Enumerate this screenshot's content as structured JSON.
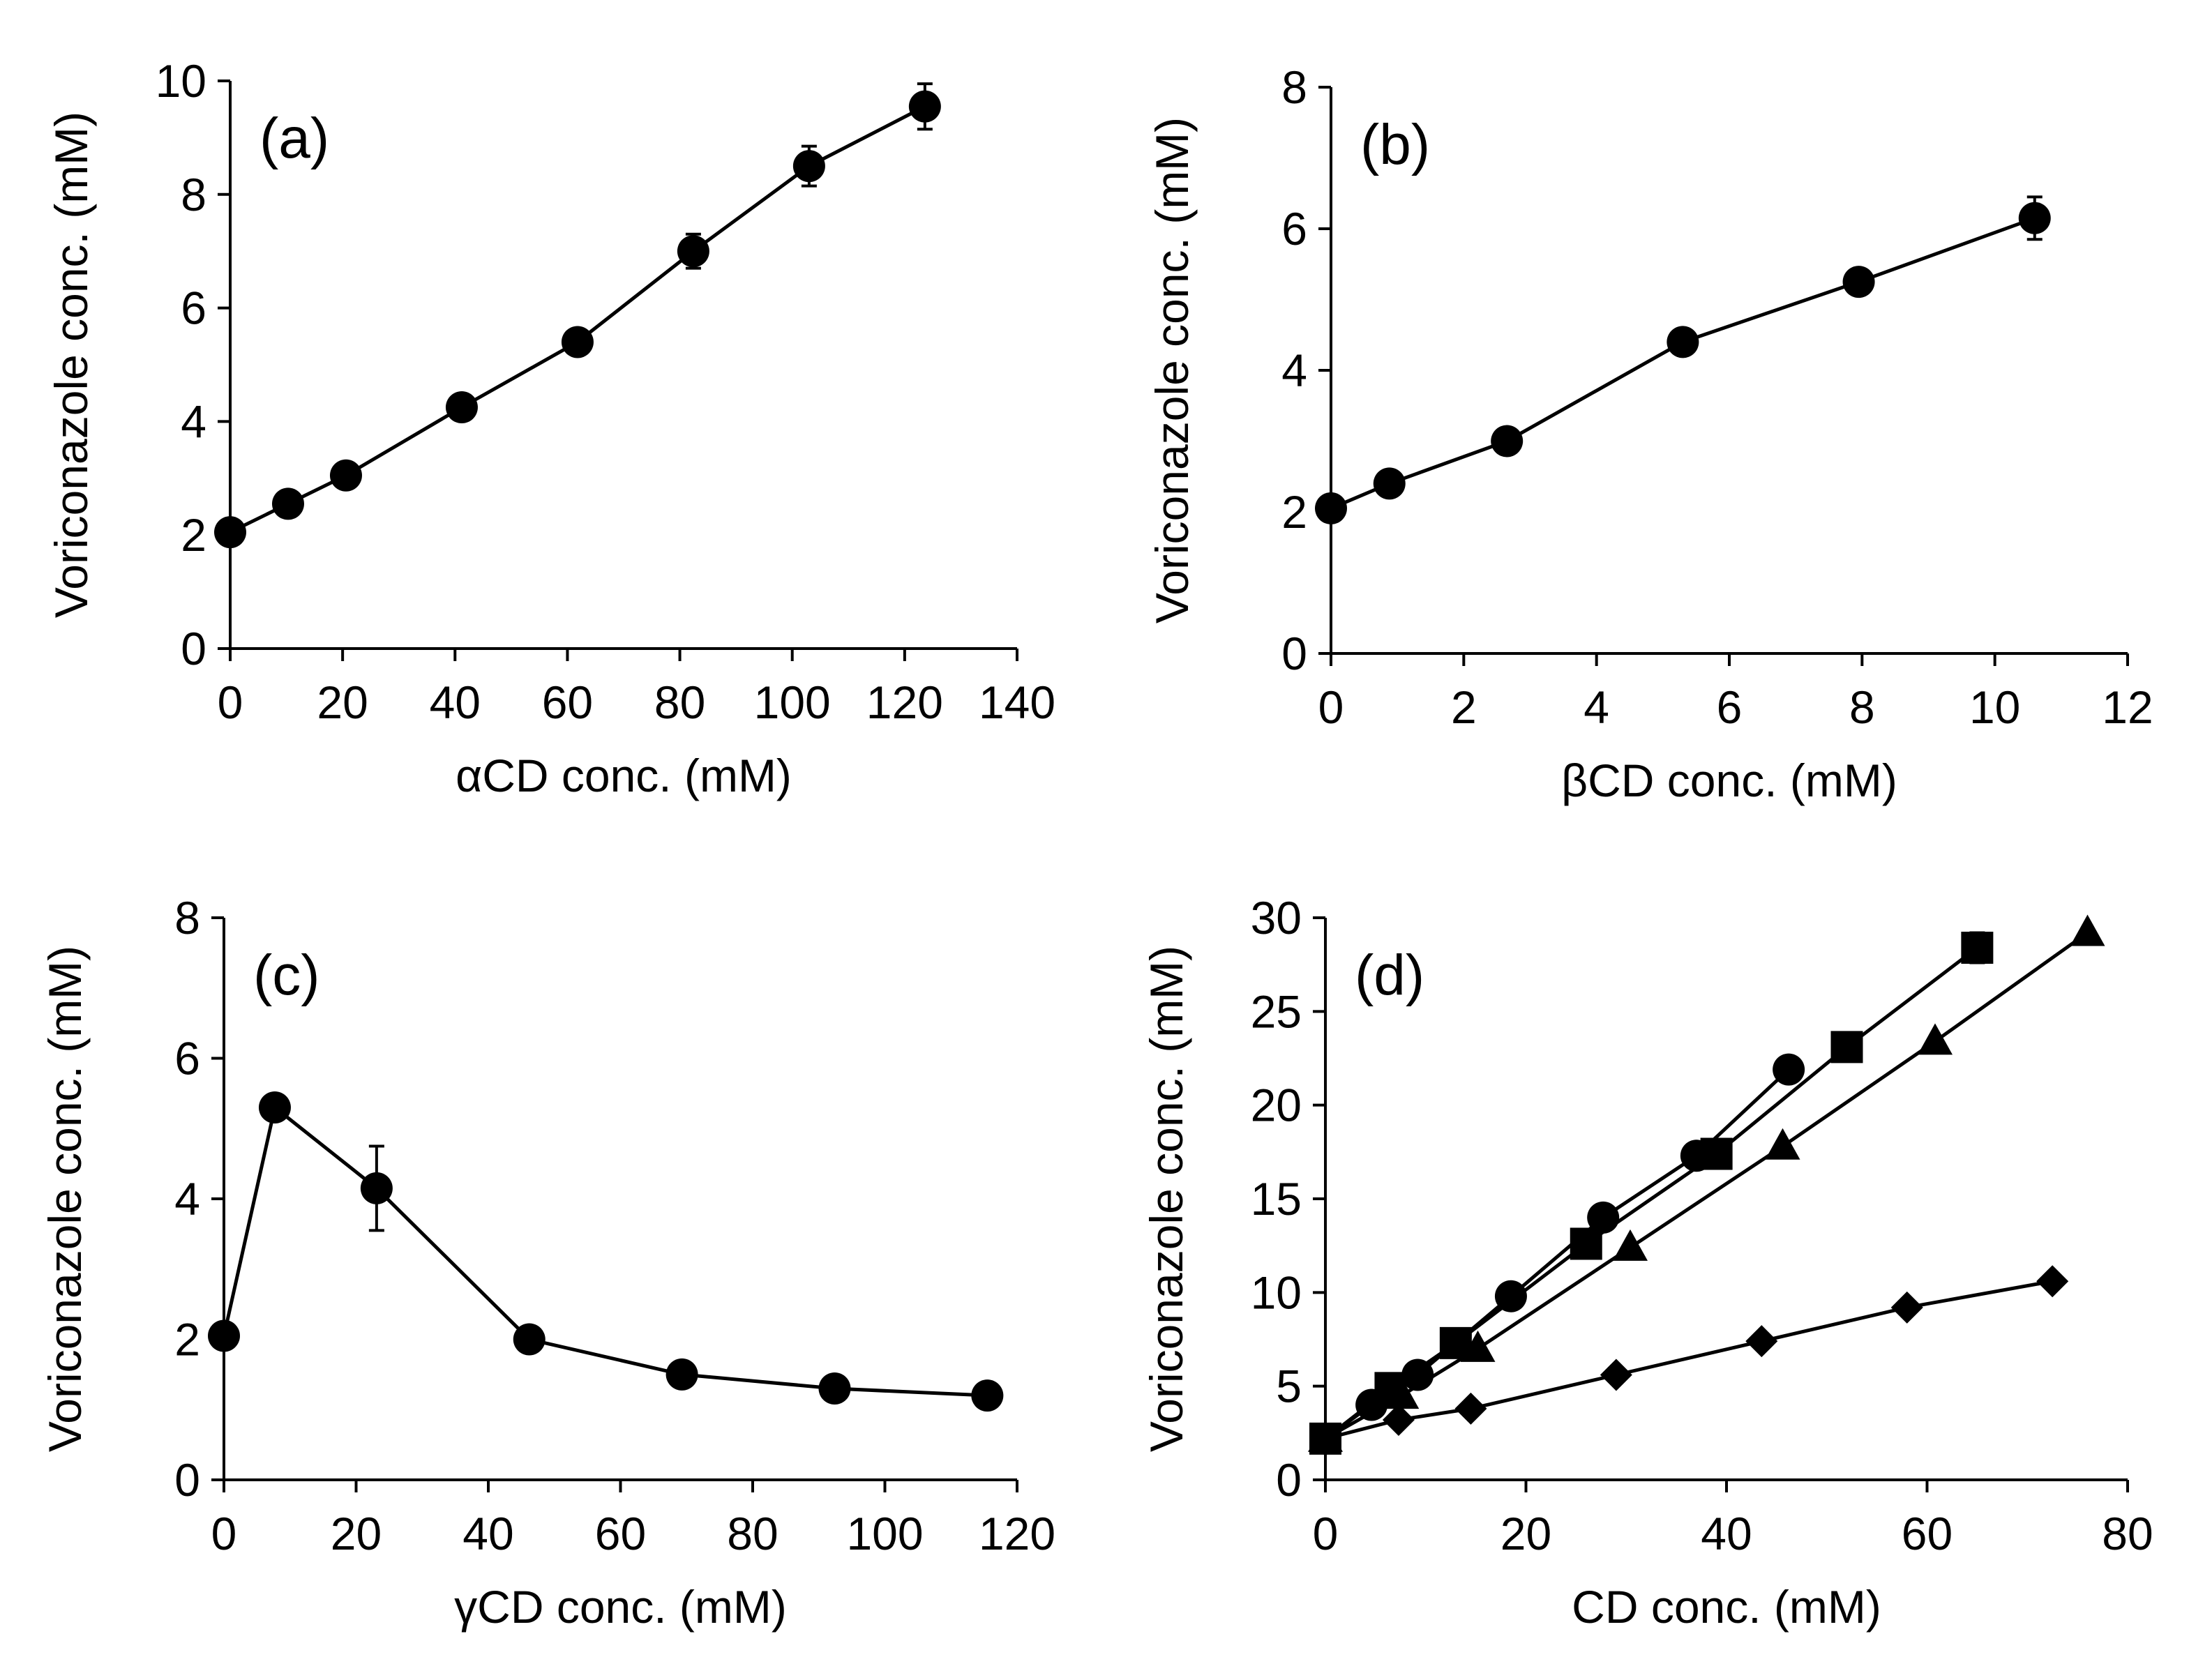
{
  "chart_data": [
    {
      "panel": "(a)",
      "type": "line",
      "xlabel": "αCD conc. (mM)",
      "ylabel": "Voriconazole conc. (mM)",
      "xlim": [
        0,
        140
      ],
      "ylim": [
        0,
        10
      ],
      "xticks": [
        0,
        20,
        40,
        60,
        80,
        100,
        120,
        140
      ],
      "yticks": [
        0,
        2,
        4,
        6,
        8,
        10
      ],
      "grid": false,
      "series": [
        {
          "name": "αCD",
          "marker": "circle",
          "x": [
            0,
            10.3,
            20.6,
            41.2,
            61.8,
            82.4,
            103,
            123.6
          ],
          "y": [
            2.05,
            2.55,
            3.05,
            4.25,
            5.4,
            7.0,
            8.5,
            9.55
          ],
          "err": [
            0,
            0,
            0,
            0,
            0,
            0.3,
            0.35,
            0.4
          ]
        }
      ]
    },
    {
      "panel": "(b)",
      "type": "line",
      "xlabel": "βCD conc. (mM)",
      "ylabel": "Voriconazole conc. (mM)",
      "xlim": [
        0,
        12
      ],
      "ylim": [
        0,
        8
      ],
      "xticks": [
        0,
        2,
        4,
        6,
        8,
        10,
        12
      ],
      "yticks": [
        0,
        2,
        4,
        6,
        8
      ],
      "grid": false,
      "series": [
        {
          "name": "βCD",
          "marker": "circle",
          "x": [
            0,
            0.88,
            2.65,
            5.3,
            7.95,
            10.6
          ],
          "y": [
            2.05,
            2.4,
            3.0,
            4.4,
            5.25,
            6.15
          ],
          "err": [
            0,
            0,
            0,
            0,
            0,
            0.3
          ]
        }
      ]
    },
    {
      "panel": "(c)",
      "type": "line",
      "xlabel": "γCD conc. (mM)",
      "ylabel": "Voriconazole conc. (mM)",
      "xlim": [
        0,
        120
      ],
      "ylim": [
        0,
        8
      ],
      "xticks": [
        0,
        20,
        40,
        60,
        80,
        100,
        120
      ],
      "yticks": [
        0,
        2,
        4,
        6,
        8
      ],
      "grid": false,
      "series": [
        {
          "name": "γCD",
          "marker": "circle",
          "x": [
            0,
            7.7,
            23.1,
            46.2,
            69.3,
            92.4,
            115.5
          ],
          "y": [
            2.05,
            5.3,
            4.15,
            2.0,
            1.5,
            1.3,
            1.2
          ],
          "err": [
            0,
            0,
            0.6,
            0,
            0,
            0,
            0
          ]
        }
      ]
    },
    {
      "panel": "(d)",
      "type": "line",
      "xlabel": "CD conc. (mM)",
      "ylabel": "Voriconazole conc. (mM)",
      "xlim": [
        0,
        80
      ],
      "ylim": [
        0,
        30
      ],
      "xticks": [
        0,
        20,
        40,
        60,
        80
      ],
      "yticks": [
        0,
        5,
        10,
        15,
        20,
        25,
        30
      ],
      "grid": false,
      "series": [
        {
          "name": "circle",
          "marker": "circle",
          "x": [
            0,
            4.6,
            9.2,
            18.5,
            27.7,
            37,
            46.2
          ],
          "y": [
            2.2,
            4.0,
            5.6,
            9.8,
            14.0,
            17.3,
            21.9
          ],
          "err": [
            0,
            0,
            0,
            0,
            0,
            0,
            0
          ]
        },
        {
          "name": "square",
          "marker": "square",
          "x": [
            0,
            6.5,
            13,
            26,
            39,
            52,
            65
          ],
          "y": [
            2.2,
            4.9,
            7.3,
            12.6,
            17.4,
            23.1,
            28.4
          ],
          "err": [
            0,
            0,
            0,
            0,
            0,
            0,
            0.8
          ]
        },
        {
          "name": "triangle",
          "marker": "triangle",
          "x": [
            0,
            7.6,
            15.2,
            30.4,
            45.6,
            60.8,
            76
          ],
          "y": [
            2.2,
            4.5,
            7.0,
            12.4,
            17.8,
            23.4,
            29.2
          ],
          "err": [
            0,
            0,
            0,
            0,
            0,
            0,
            0
          ]
        },
        {
          "name": "diamond",
          "marker": "diamond",
          "x": [
            0,
            7.3,
            14.5,
            29,
            43.5,
            58,
            72.5
          ],
          "y": [
            2.2,
            3.2,
            3.8,
            5.6,
            7.4,
            9.2,
            10.6
          ],
          "err": [
            0,
            0,
            0,
            0,
            0,
            0,
            0
          ]
        }
      ]
    }
  ]
}
